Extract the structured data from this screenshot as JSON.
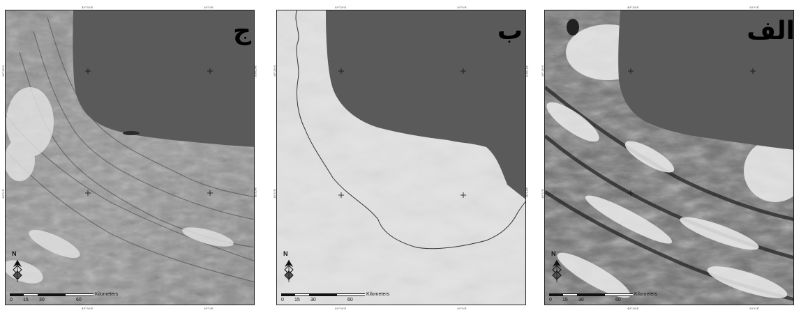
{
  "panels": [
    {
      "letter": "ج",
      "style": "terrain",
      "north": "N",
      "scale": {
        "ticks": [
          "0",
          "15",
          "30",
          "60"
        ],
        "unit": "Kilometers"
      },
      "lon_labels": [
        "49°30'E",
        "50°0'E"
      ],
      "lat_labels": [
        "36°30'N",
        "36°0'N"
      ]
    },
    {
      "letter": "ب",
      "style": "outline",
      "north": "N",
      "scale": {
        "ticks": [
          "0",
          "15",
          "30",
          "60"
        ],
        "unit": "Kilometers"
      },
      "lon_labels": [
        "49°30'E",
        "50°0'E"
      ],
      "lat_labels": [
        "36°30'N",
        "36°0'N"
      ]
    },
    {
      "letter": "الف",
      "style": "cloudy",
      "north": "N",
      "scale": {
        "ticks": [
          "0",
          "15",
          "30",
          "60"
        ],
        "unit": "Kilometers"
      },
      "lon_labels": [
        "49°30'E",
        "50°0'E"
      ],
      "lat_labels": [
        "36°30'N",
        "36°0'N"
      ]
    }
  ],
  "colors": {
    "sea": "#5a5a5a",
    "frame": "#222222"
  }
}
